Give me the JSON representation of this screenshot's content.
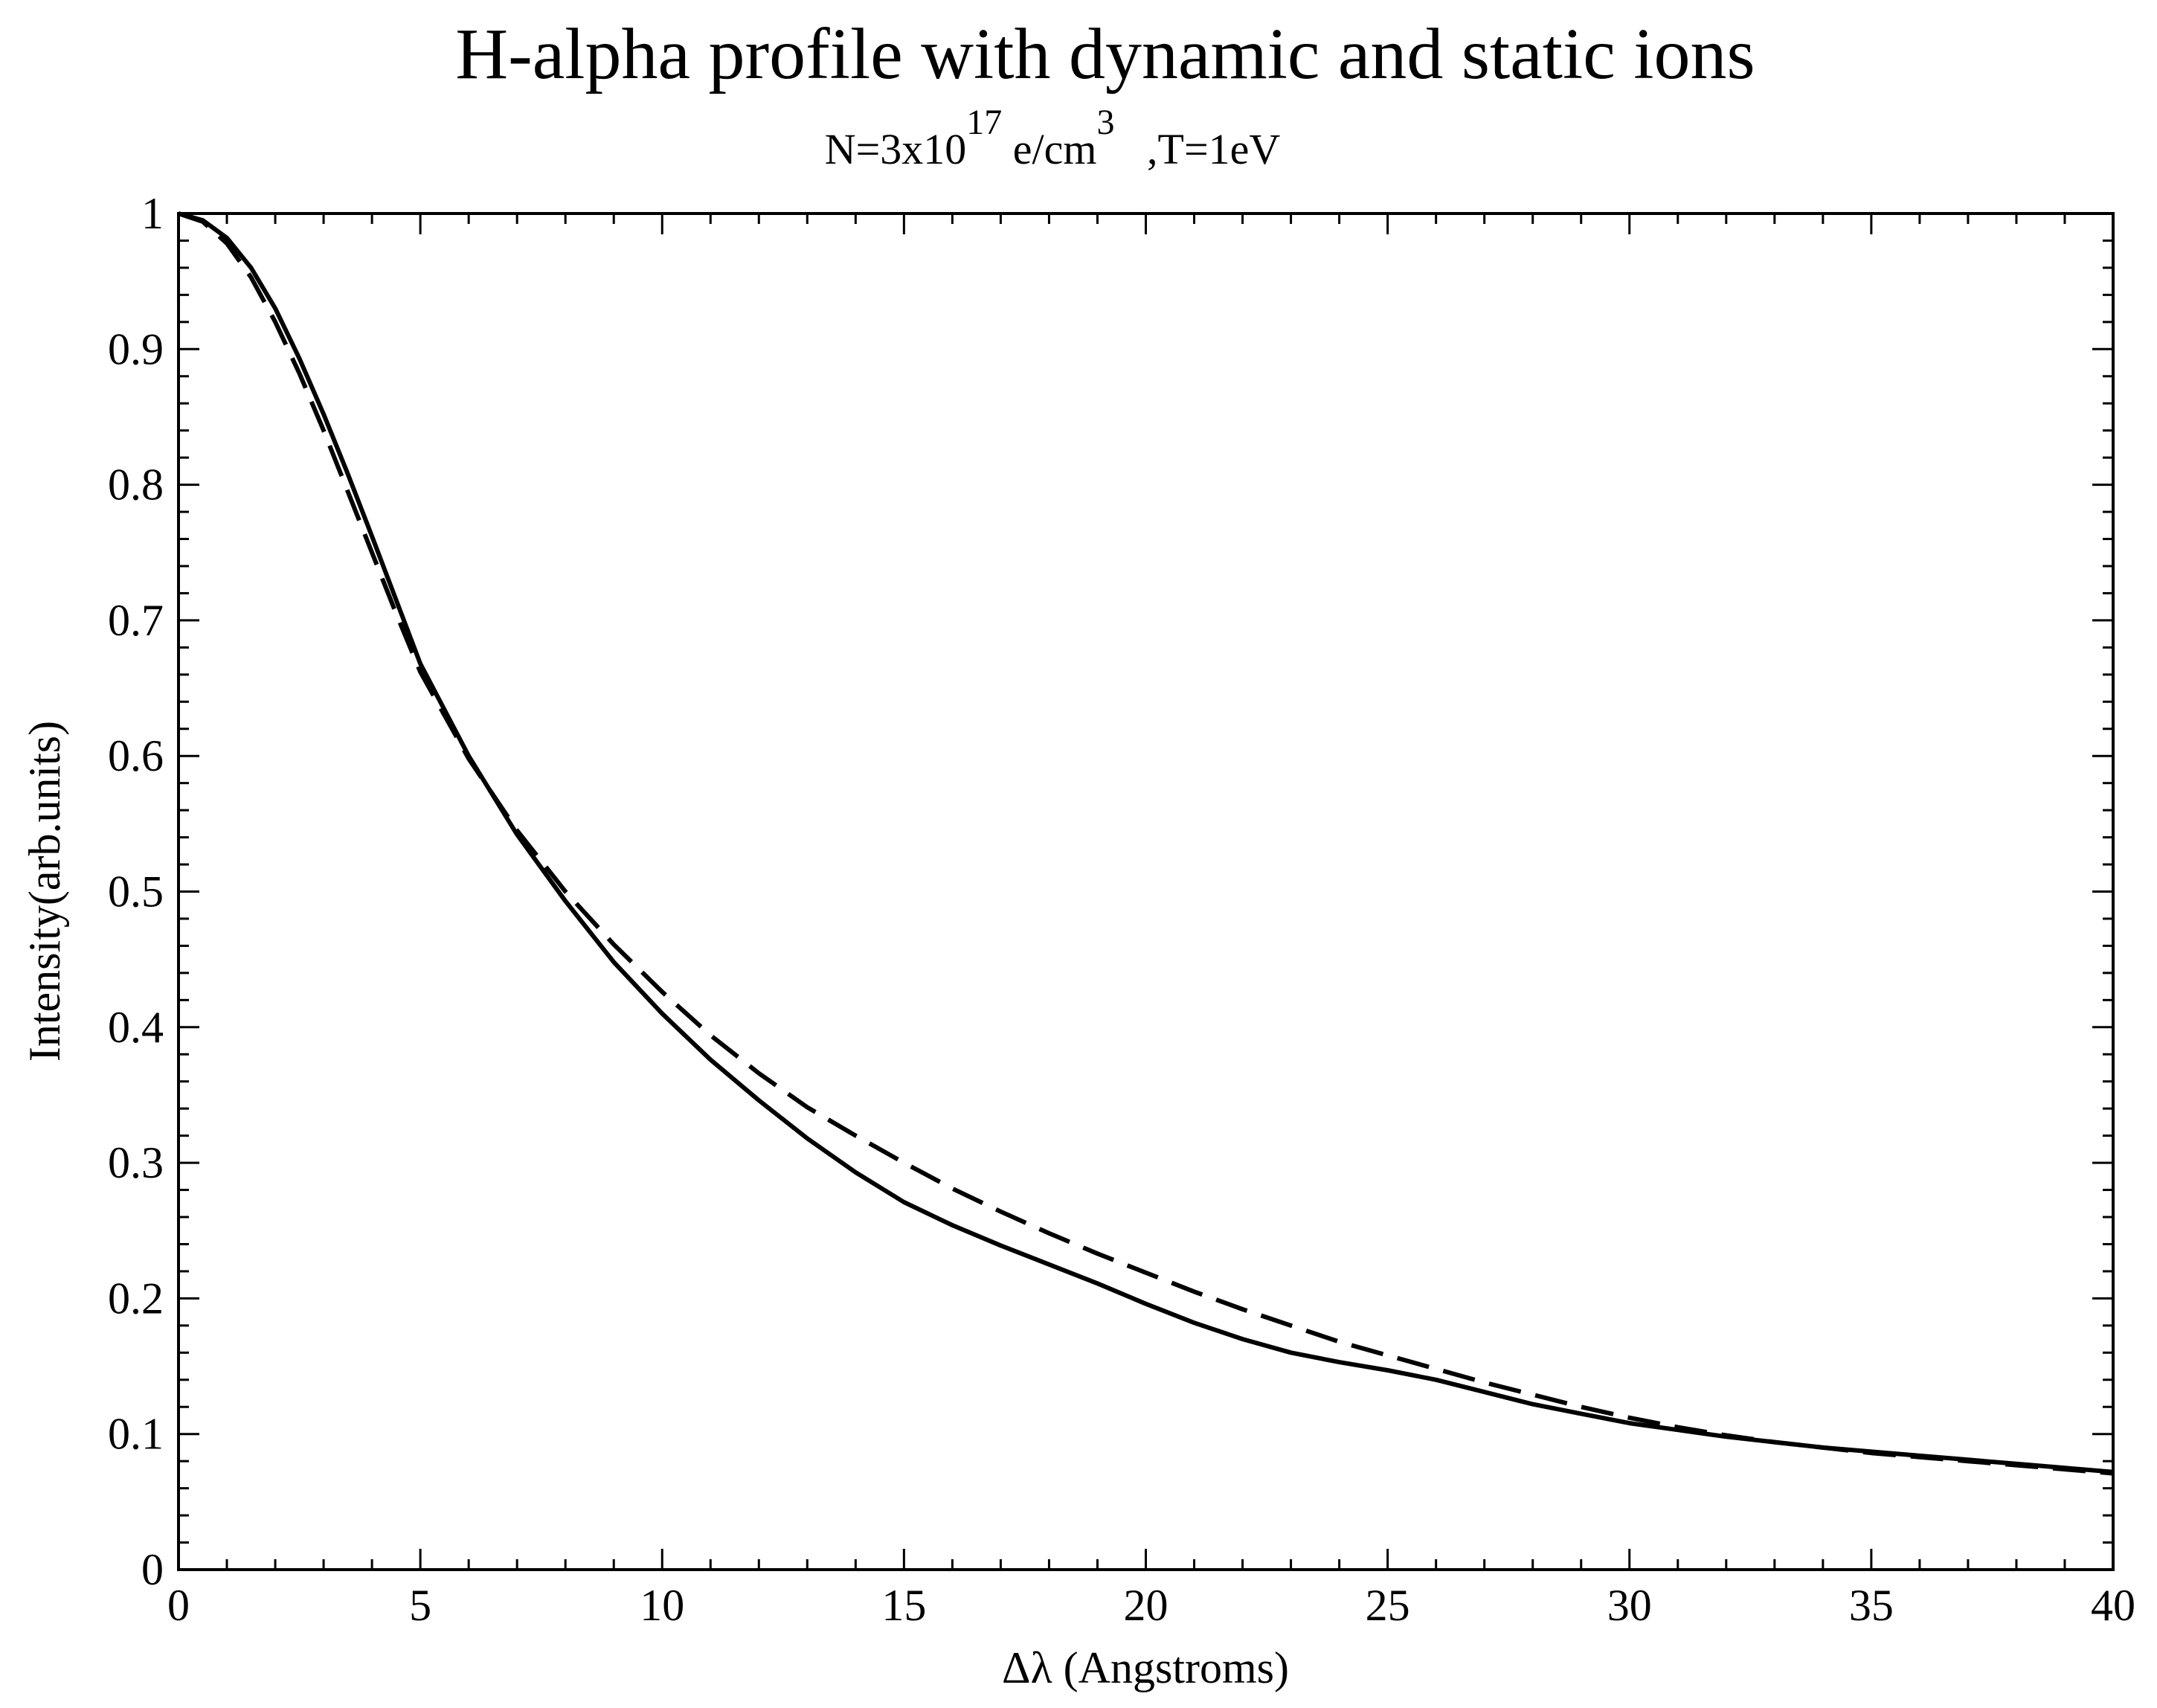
{
  "chart_data": {
    "type": "line",
    "title": "H-alpha profile with dynamic and static ions",
    "subtitle": {
      "prefix": "N=3x10",
      "exp1": "17",
      "mid": " e/cm",
      "exp2": "3",
      "suffix": "   ,T=1eV"
    },
    "xlabel": "Δλ (Angstroms)",
    "ylabel": "Intensity(arb.units)",
    "xlim": [
      0,
      40
    ],
    "ylim": [
      0,
      1
    ],
    "x_ticks": [
      0,
      5,
      10,
      15,
      20,
      25,
      30,
      35,
      40
    ],
    "x_tick_labels": [
      "0",
      "5",
      "10",
      "15",
      "20",
      "25",
      "30",
      "35",
      "40"
    ],
    "y_ticks": [
      0,
      0.1,
      0.2,
      0.3,
      0.4,
      0.5,
      0.6,
      0.7,
      0.8,
      0.9,
      1
    ],
    "y_tick_labels": [
      "0",
      "0.1",
      "0.2",
      "0.3",
      "0.4",
      "0.5",
      "0.6",
      "0.7",
      "0.8",
      "0.9",
      "1"
    ],
    "x_minor_step": 1,
    "y_minor_step": 0.02,
    "grid": false,
    "legend": "none",
    "series": [
      {
        "style": "solid",
        "color": "#000000",
        "x": [
          0,
          0.5,
          1,
          1.5,
          2,
          2.5,
          3,
          3.5,
          4,
          4.5,
          5,
          6,
          7,
          8,
          9,
          10,
          11,
          12,
          13,
          14,
          15,
          16,
          17,
          18,
          19,
          20,
          21,
          22,
          23,
          24,
          25,
          26,
          27,
          28,
          29,
          30,
          31,
          32,
          33,
          34,
          35,
          36,
          37,
          38,
          39,
          40
        ],
        "y": [
          1.0,
          0.995,
          0.982,
          0.96,
          0.93,
          0.893,
          0.852,
          0.808,
          0.762,
          0.715,
          0.668,
          0.6,
          0.542,
          0.493,
          0.448,
          0.41,
          0.376,
          0.346,
          0.318,
          0.293,
          0.271,
          0.254,
          0.239,
          0.225,
          0.211,
          0.196,
          0.182,
          0.17,
          0.16,
          0.153,
          0.147,
          0.14,
          0.131,
          0.122,
          0.115,
          0.108,
          0.103,
          0.098,
          0.094,
          0.09,
          0.087,
          0.084,
          0.081,
          0.078,
          0.075,
          0.072
        ]
      },
      {
        "style": "dashed",
        "color": "#000000",
        "x": [
          0,
          0.5,
          1,
          1.5,
          2,
          2.5,
          3,
          3.5,
          4,
          4.5,
          5,
          6,
          7,
          8,
          9,
          10,
          11,
          12,
          13,
          14,
          15,
          16,
          17,
          18,
          19,
          20,
          21,
          22,
          23,
          24,
          25,
          26,
          27,
          28,
          29,
          30,
          31,
          32,
          33,
          34,
          35,
          36,
          37,
          38,
          39,
          40
        ],
        "y": [
          1.0,
          0.994,
          0.978,
          0.953,
          0.92,
          0.882,
          0.84,
          0.795,
          0.75,
          0.705,
          0.662,
          0.598,
          0.545,
          0.5,
          0.461,
          0.426,
          0.394,
          0.366,
          0.341,
          0.32,
          0.3,
          0.281,
          0.264,
          0.248,
          0.233,
          0.219,
          0.205,
          0.192,
          0.18,
          0.168,
          0.158,
          0.148,
          0.138,
          0.129,
          0.12,
          0.112,
          0.105,
          0.099,
          0.094,
          0.09,
          0.086,
          0.083,
          0.08,
          0.077,
          0.074,
          0.071
        ]
      }
    ]
  }
}
